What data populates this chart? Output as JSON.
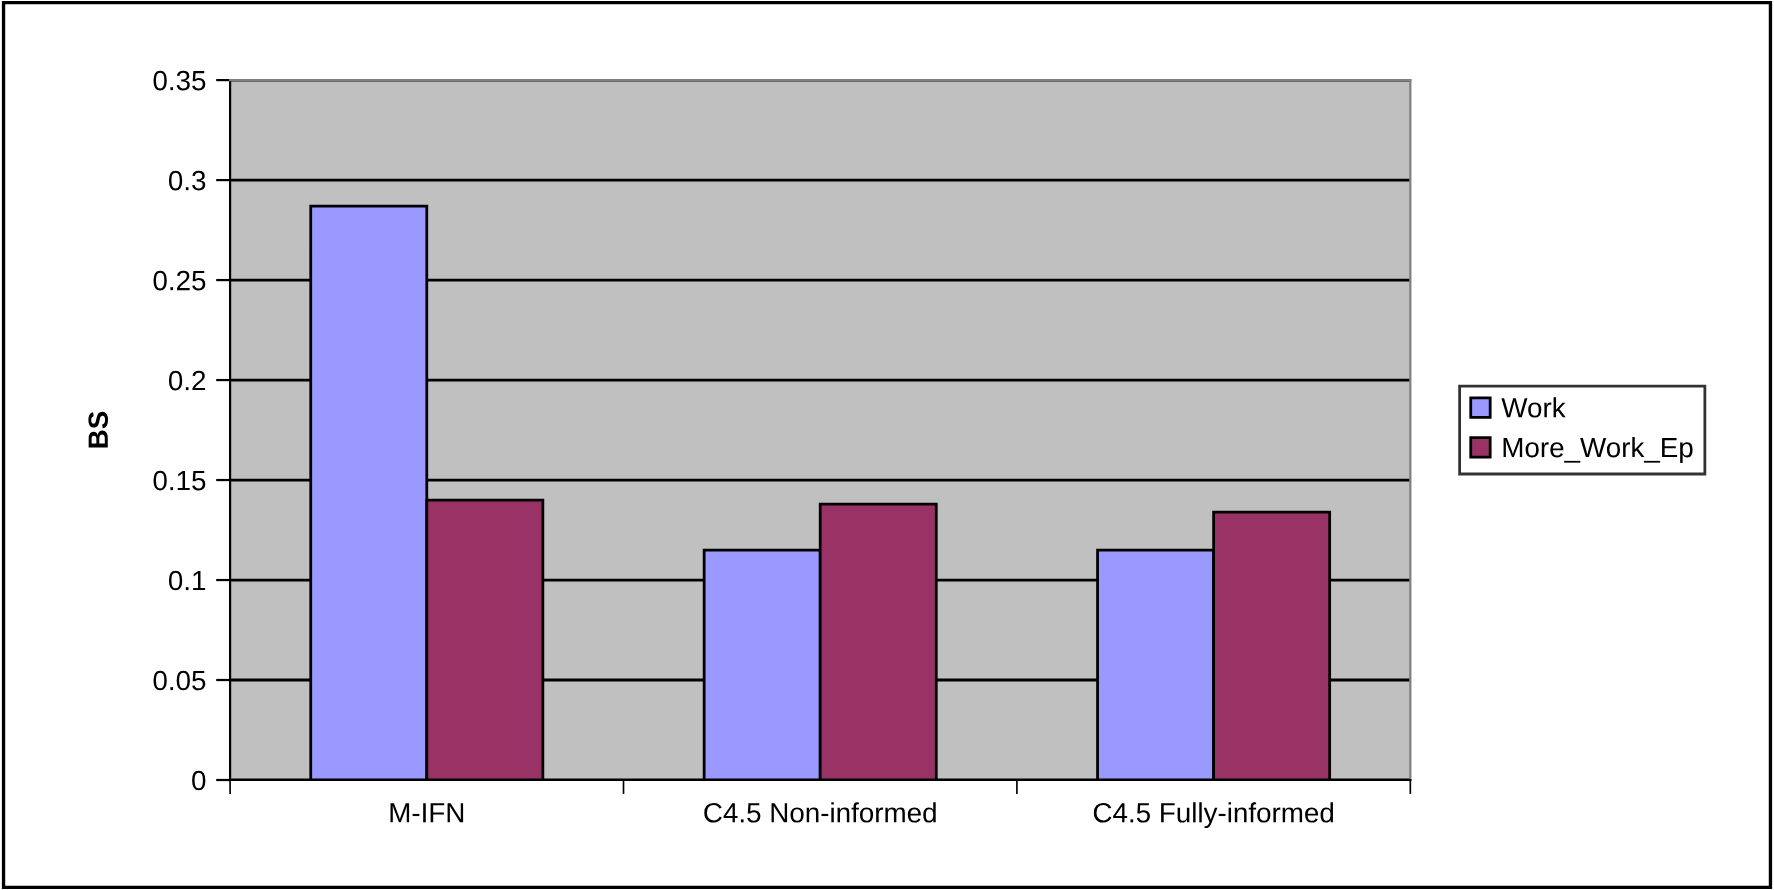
{
  "chart_data": {
    "type": "bar",
    "ylabel": "BS",
    "categories": [
      "M-IFN",
      "C4.5 Non-informed",
      "C4.5 Fully-informed"
    ],
    "series": [
      {
        "name": "Work",
        "color": "#9999ff",
        "values": [
          0.287,
          0.115,
          0.115
        ]
      },
      {
        "name": "More_Work_Ep",
        "color": "#993366",
        "values": [
          0.14,
          0.138,
          0.134
        ]
      }
    ],
    "ylim": [
      0,
      0.35
    ],
    "yticks": [
      0,
      0.05,
      0.1,
      0.15,
      0.2,
      0.25,
      0.3,
      0.35
    ],
    "grid": "y",
    "legend": "right"
  }
}
